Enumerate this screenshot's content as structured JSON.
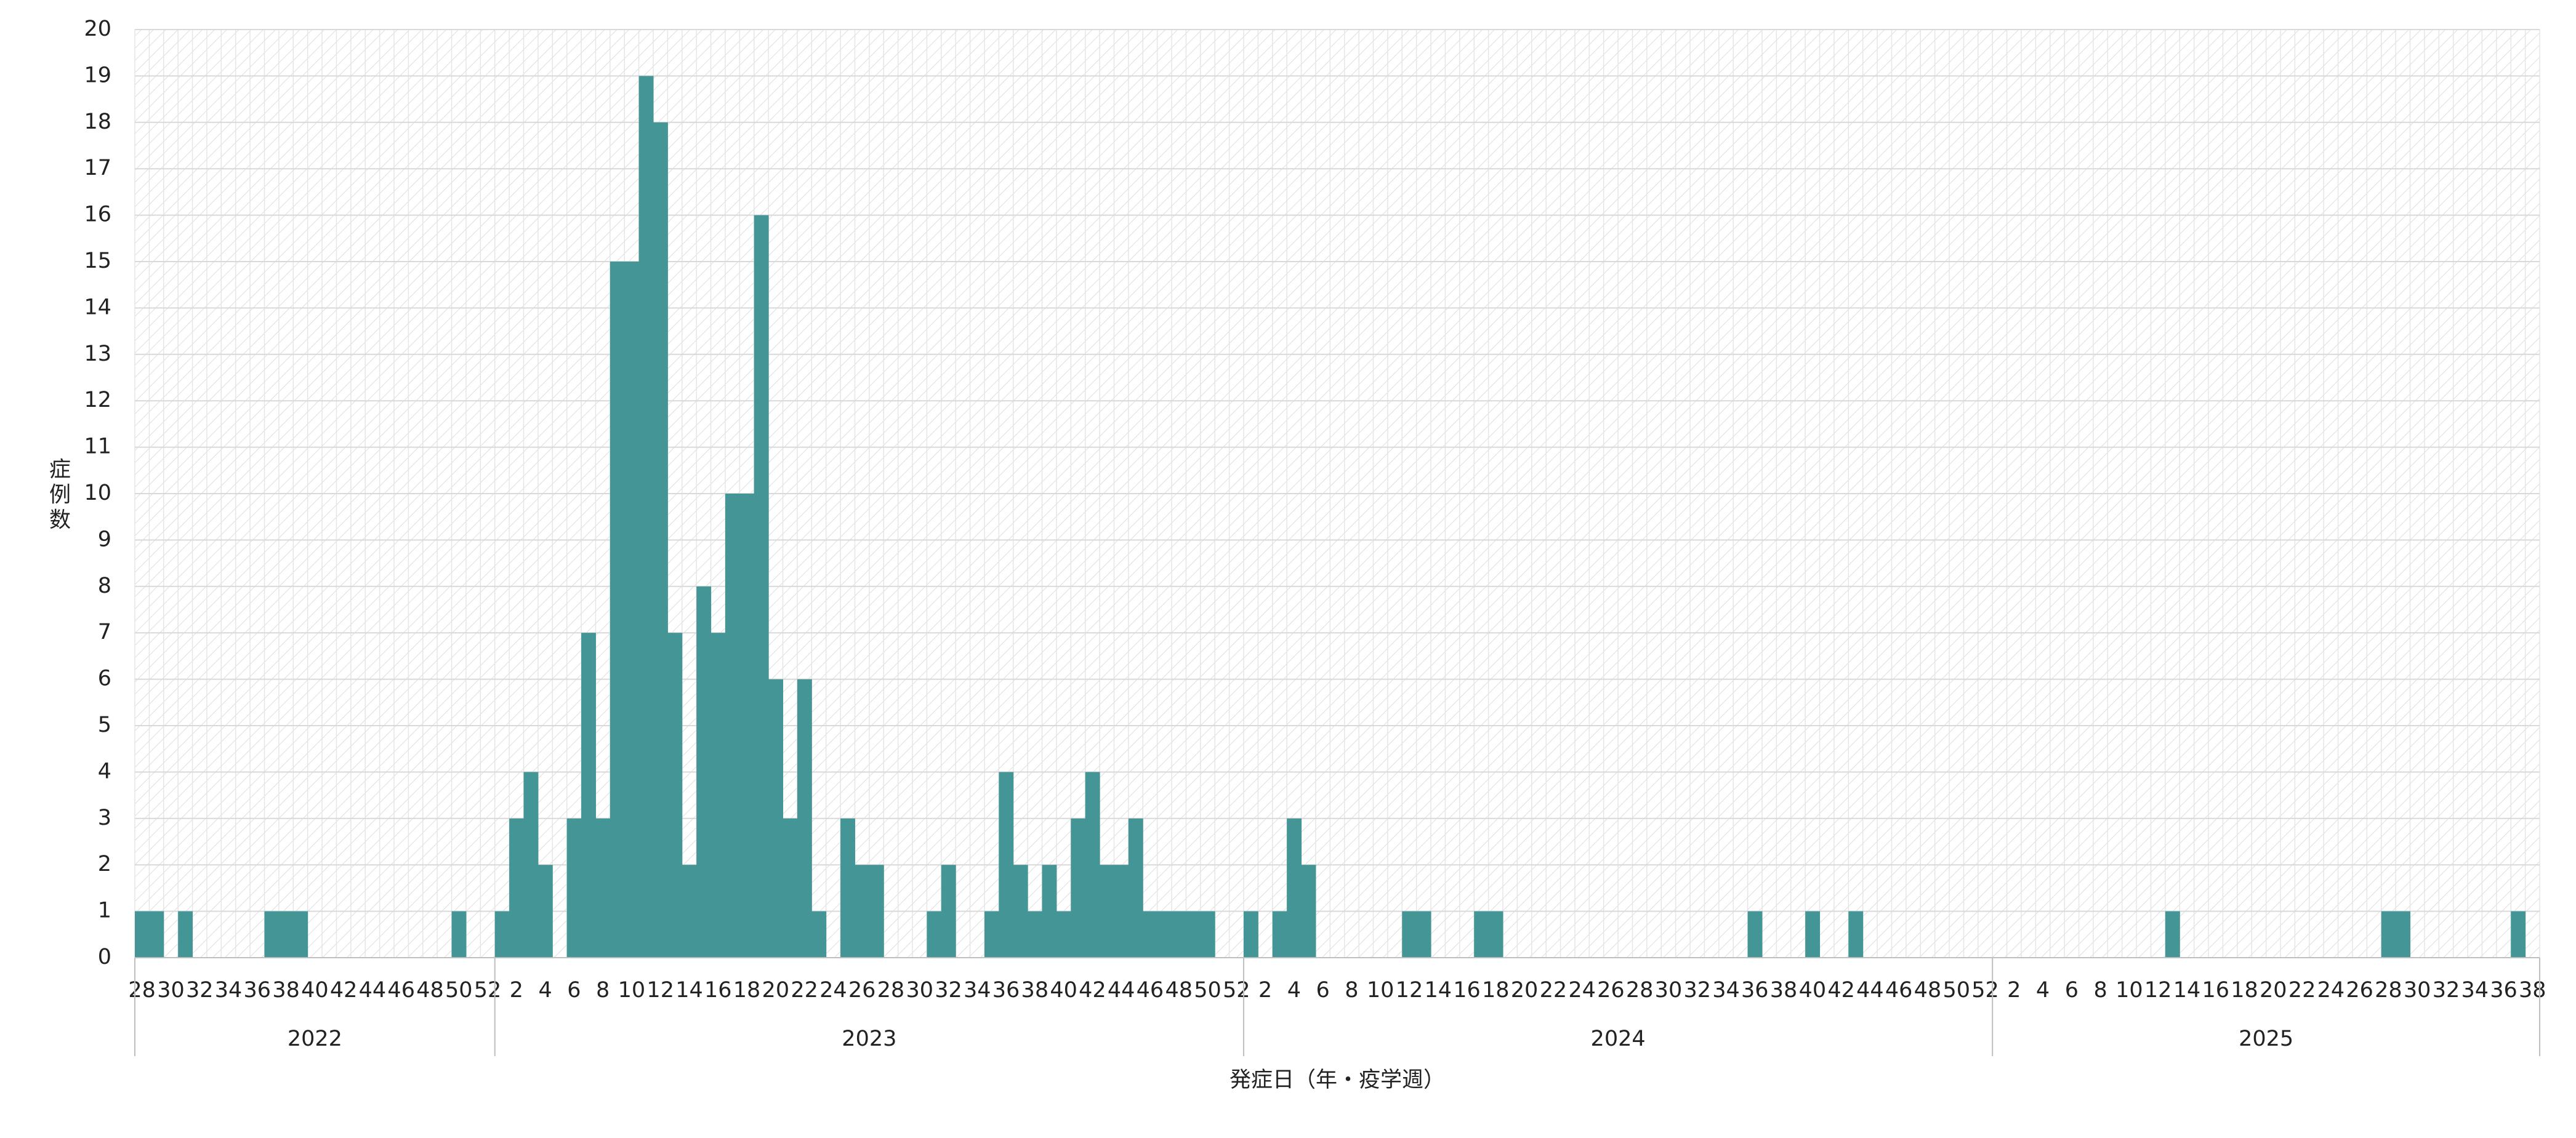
{
  "chart_data": {
    "type": "bar",
    "ylabel": "症例数",
    "xlabel": "発症日（年・疫学週）",
    "years": [
      "2022",
      "2023",
      "2024",
      "2025"
    ],
    "color": "#439695",
    "grid": true,
    "ylim": [
      0,
      20
    ],
    "yticks": [
      0,
      1,
      2,
      3,
      4,
      5,
      6,
      7,
      8,
      9,
      10,
      11,
      12,
      13,
      14,
      15,
      16,
      17,
      18,
      19,
      20
    ],
    "categories": [
      "28",
      null,
      "30",
      null,
      "32",
      null,
      "34",
      null,
      "36",
      null,
      "38",
      null,
      "40",
      null,
      "42",
      null,
      "44",
      null,
      "46",
      null,
      "48",
      null,
      "50",
      null,
      "52",
      null,
      "2",
      null,
      "4",
      null,
      "6",
      null,
      "8",
      null,
      "10",
      null,
      "12",
      null,
      "14",
      null,
      "16",
      null,
      "18",
      null,
      "20",
      null,
      "22",
      null,
      "24",
      null,
      "26",
      null,
      "28",
      null,
      "30",
      null,
      "32",
      null,
      "34",
      null,
      "36",
      null,
      "38",
      null,
      "40",
      null,
      "42",
      null,
      "44",
      null,
      "46",
      null,
      "48",
      null,
      "50",
      null,
      "52",
      null,
      "2",
      null,
      "4",
      null,
      "6",
      null,
      "8",
      null,
      "10",
      null,
      "12",
      null,
      "14",
      null,
      "16",
      null,
      "18",
      null,
      "20",
      null,
      "22",
      null,
      "24",
      null,
      "26",
      null,
      "28",
      null,
      "30",
      null,
      "32",
      null,
      "34",
      null,
      "36",
      null,
      "38",
      null,
      "40",
      null,
      "42",
      null,
      "44",
      null,
      "46",
      null,
      "48",
      null,
      "50",
      null,
      "52",
      null,
      "2",
      null,
      "4",
      null,
      "6",
      null,
      "8",
      null,
      "10",
      null,
      "12",
      null,
      "14",
      null,
      "16",
      null,
      "18",
      null,
      "20",
      null,
      "22",
      null,
      "24",
      null,
      "26",
      null,
      "28",
      null,
      "30",
      null,
      "32",
      null,
      "34",
      null,
      "36",
      null,
      "38"
    ],
    "values": [
      1,
      1,
      0,
      1,
      0,
      0,
      0,
      0,
      0,
      1,
      1,
      1,
      0,
      0,
      0,
      0,
      0,
      0,
      0,
      0,
      0,
      0,
      1,
      0,
      0,
      1,
      3,
      4,
      2,
      0,
      3,
      7,
      3,
      15,
      15,
      19,
      18,
      7,
      2,
      8,
      7,
      10,
      10,
      16,
      6,
      3,
      6,
      1,
      0,
      3,
      2,
      2,
      0,
      0,
      0,
      1,
      2,
      0,
      0,
      1,
      4,
      2,
      1,
      2,
      1,
      3,
      4,
      2,
      2,
      3,
      1,
      1,
      1,
      1,
      1,
      0,
      0,
      1,
      0,
      1,
      3,
      2,
      0,
      0,
      0,
      0,
      0,
      0,
      1,
      1,
      0,
      0,
      0,
      1,
      1,
      0,
      0,
      0,
      0,
      0,
      0,
      0,
      0,
      0,
      0,
      0,
      0,
      0,
      0,
      0,
      0,
      0,
      1,
      0,
      0,
      0,
      1,
      0,
      0,
      1,
      0,
      0,
      0,
      0,
      0,
      0,
      0,
      0,
      0,
      0,
      0,
      0,
      0,
      0,
      0,
      0,
      0,
      0,
      0,
      0,
      0,
      1,
      0,
      0,
      0,
      0,
      0,
      0,
      0,
      0,
      0,
      0,
      0,
      0,
      0,
      0,
      1,
      1,
      0,
      0,
      0,
      0,
      0,
      0,
      0,
      1,
      0
    ]
  }
}
